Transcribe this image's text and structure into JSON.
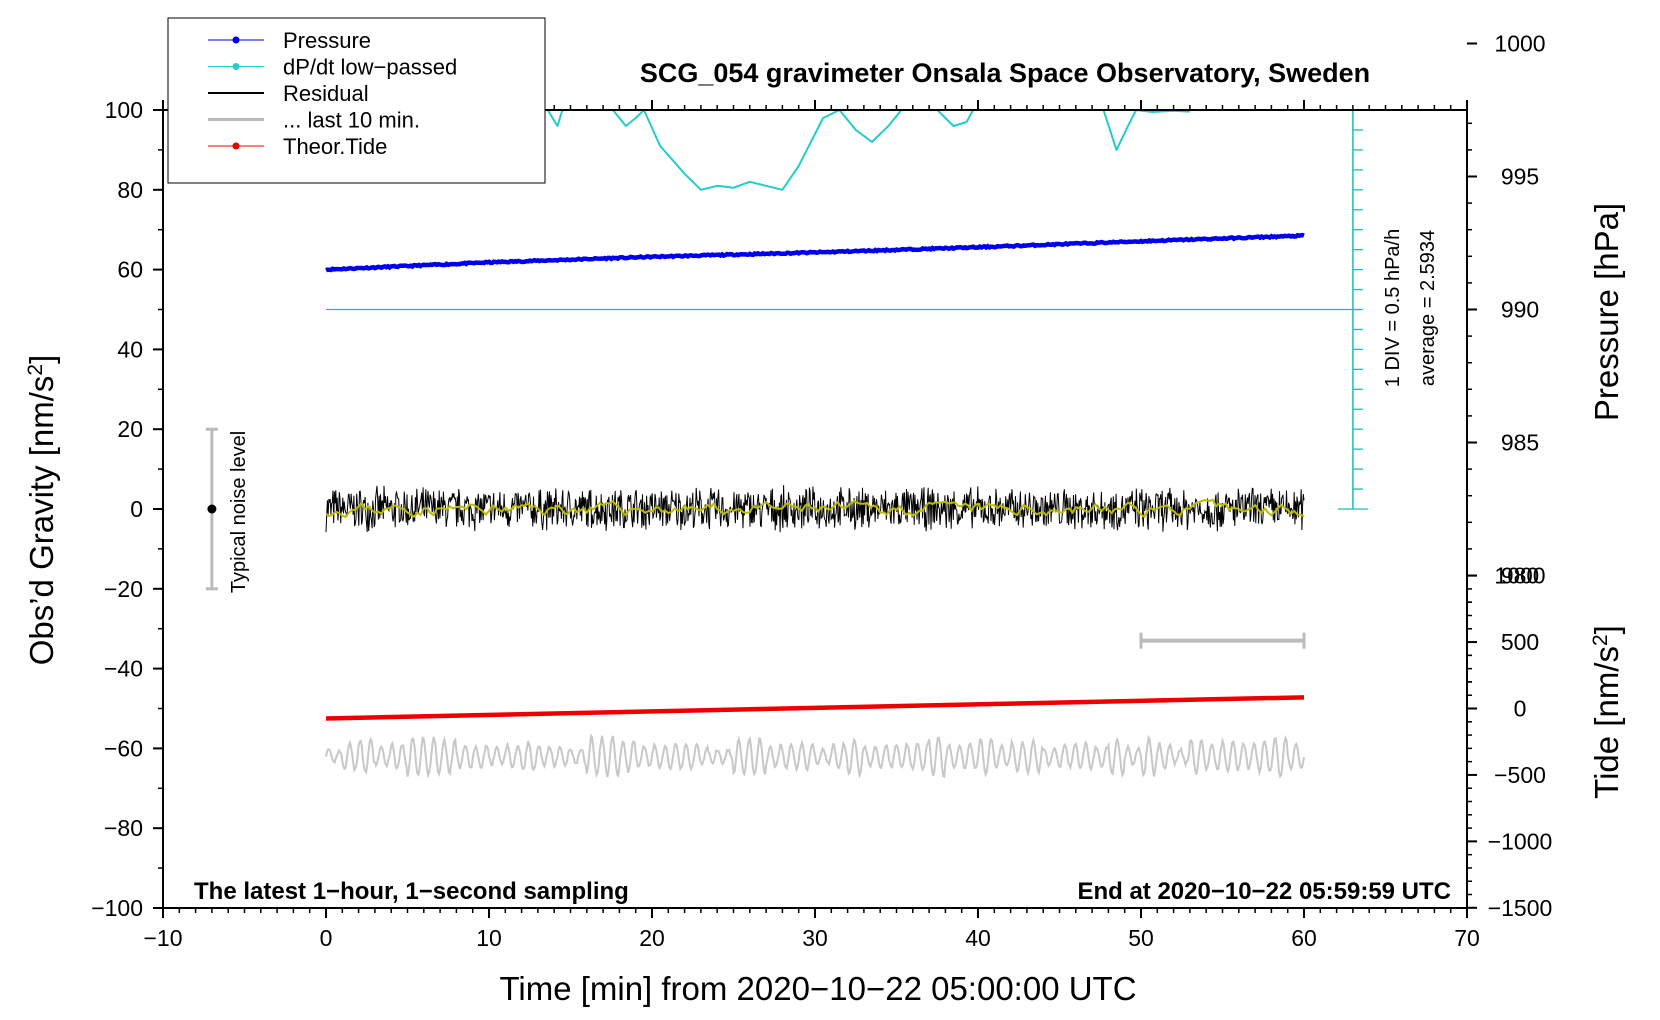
{
  "chart_data": {
    "type": "line",
    "title": "SCG_054 gravimeter Onsala Space Observatory, Sweden",
    "xlabel": "Time [min] from 2020−10−22 05:00:00 UTC",
    "ylabel": "Obs’d Gravity [nm/s²]",
    "ylabel_main": "Obs’d Gravity [nm/s",
    "ylabel_sup": "2",
    "ylabel_close": "]",
    "right_pressure_label": "Pressure [hPa]",
    "right_tide_label_main": "Tide [nm/s",
    "right_tide_label_sup": "2",
    "right_tide_label_close": "]",
    "xlim": [
      -10,
      70
    ],
    "ylim": [
      -100,
      100
    ],
    "x_ticks": [
      "−10",
      "0",
      "10",
      "20",
      "30",
      "40",
      "50",
      "60",
      "70"
    ],
    "x_tick_values": [
      -10,
      0,
      10,
      20,
      30,
      40,
      50,
      60,
      70
    ],
    "y_ticks": [
      "−100",
      "−80",
      "−60",
      "−40",
      "−20",
      "0",
      "20",
      "40",
      "60",
      "80",
      "100"
    ],
    "y_tick_values": [
      -100,
      -80,
      -60,
      -40,
      -20,
      0,
      20,
      40,
      60,
      80,
      100
    ],
    "pressure_axis": {
      "ticks": [
        "980",
        "985",
        "990",
        "995",
        "1000"
      ],
      "tick_values": [
        980,
        985,
        990,
        995,
        1000
      ],
      "mapping_gravity_at_990": 50,
      "gravity_per_hpa": 6.667
    },
    "tide_axis": {
      "ticks": [
        "−1500",
        "−1000",
        "−500",
        "0",
        "500",
        "1000"
      ],
      "tick_values": [
        -1500,
        -1000,
        -500,
        0,
        500,
        1000
      ],
      "mapping_gravity_at_0": -50,
      "gravity_per_nms2": 0.0333
    },
    "series": [
      {
        "name": "Pressure",
        "color": "#0000ee",
        "type": "line",
        "x": [
          0,
          10,
          20,
          30,
          40,
          50,
          60
        ],
        "values": [
          60,
          61.8,
          63.2,
          64.3,
          65.6,
          67.1,
          68.5
        ]
      },
      {
        "name": "dP/dt low−passed",
        "color": "#22cccc",
        "type": "line",
        "x": [
          13.6,
          14.2,
          14.5,
          17.6,
          18.4,
          19.0,
          19.5,
          20.5,
          22.0,
          23.0,
          24.0,
          25.0,
          26.0,
          27.0,
          28.0,
          29.0,
          30.5,
          31.5,
          32.5,
          33.5,
          34.5,
          35.3,
          37.5,
          38.5,
          39.3,
          39.7,
          47.7,
          48.5,
          49.2,
          49.7,
          50.7,
          52.0,
          53.0
        ],
        "values": [
          100,
          96,
          100,
          100,
          96,
          98,
          100,
          91,
          84,
          80,
          81,
          80.5,
          82,
          81,
          80,
          86,
          98,
          100,
          95,
          92,
          96,
          100,
          100,
          96,
          97,
          100,
          100,
          90,
          96,
          100,
          99.5,
          99.8,
          99.6
        ]
      },
      {
        "name": "Residual",
        "color": "#000000",
        "type": "noise",
        "center": 0,
        "amplitude": 6,
        "x_range": [
          0,
          60
        ]
      },
      {
        "name": "... last 10 min.",
        "color": "#bbbbbb",
        "type": "interval",
        "x_range": [
          50,
          60
        ],
        "y": -33
      },
      {
        "name": "Theor.Tide",
        "color": "#ee0000",
        "type": "line",
        "x": [
          0,
          60
        ],
        "values": [
          -52.5,
          -47.2
        ]
      },
      {
        "name": "Residual smoothed",
        "color": "#bbbb00",
        "type": "noise",
        "center": 0,
        "amplitude": 1.3,
        "x_range": [
          0,
          60
        ]
      },
      {
        "name": "Residual high−pass",
        "color": "#c8c8c8",
        "type": "wave",
        "center": -62,
        "amplitude": 4.5,
        "x_range": [
          0,
          60
        ]
      }
    ],
    "reference_line": {
      "name": "dP/dt zero",
      "y": 50,
      "x_range": [
        0,
        63.5
      ]
    },
    "dpdt_scale": {
      "x": 63,
      "y_range": [
        0,
        100
      ],
      "div": 5
    },
    "noise_bar": {
      "x": -7,
      "y": 0,
      "half": 20,
      "label": "Typical noise level"
    },
    "legend": {
      "position": "top-left",
      "entries": [
        {
          "label": "Pressure",
          "color": "#0000ee",
          "marker": true
        },
        {
          "label": "dP/dt low−passed",
          "color": "#22cccc",
          "marker": true
        },
        {
          "label": "Residual",
          "color": "#000000",
          "marker": false
        },
        {
          "label": "... last 10 min.",
          "color": "#bbbbbb",
          "marker": false
        },
        {
          "label": "Theor.Tide",
          "color": "#ee0000",
          "marker": true
        }
      ]
    },
    "annotations": {
      "bottom_left": "The latest 1−hour, 1−second sampling",
      "bottom_right": "End at 2020−10−22 05:59:59 UTC",
      "div_label": "1 DIV = 0.5 hPa/h",
      "average_label": "average = 2.5934"
    }
  }
}
